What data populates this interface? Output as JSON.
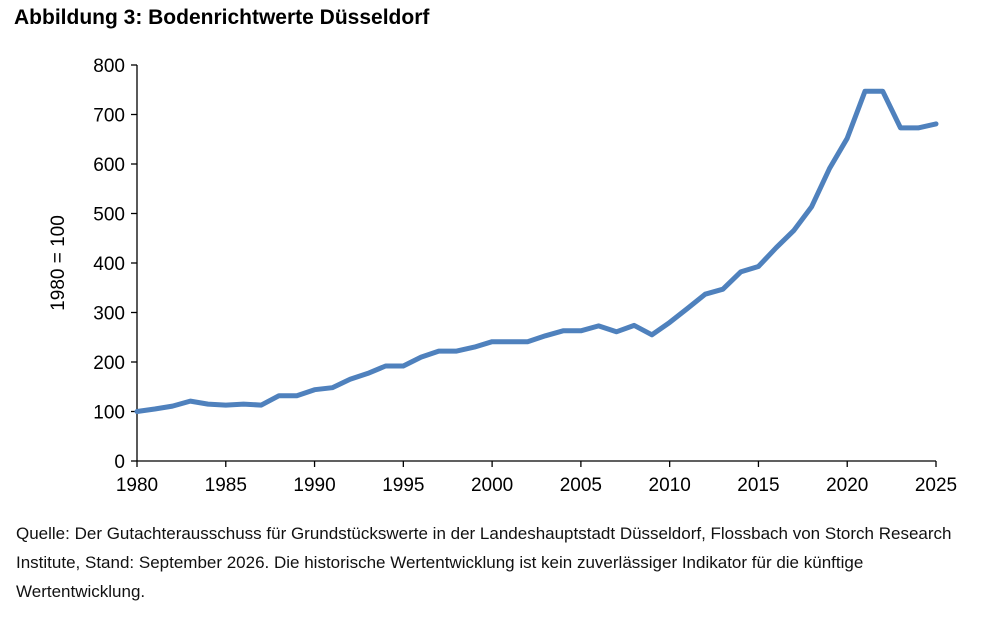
{
  "title": "Abbildung 3: Bodenrichtwerte Düsseldorf",
  "source": "Quelle: Der Gutachterausschuss für Grundstückswerte in der Landeshauptstadt Düsseldorf, Flossbach von Storch Research Institute, Stand: September 2026. Die historische Wertentwicklung ist kein zuverlässiger Indikator für die künftige Wertentwicklung.",
  "chart_data": {
    "type": "line",
    "title": "Abbildung 3: Bodenrichtwerte Düsseldorf",
    "xlabel": "",
    "ylabel": "1980 = 100",
    "xlim": [
      1980,
      2025
    ],
    "ylim": [
      0,
      800
    ],
    "x_ticks": [
      "1980",
      "1985",
      "1990",
      "1995",
      "2000",
      "2005",
      "2010",
      "2015",
      "2020",
      "2025"
    ],
    "y_ticks": [
      "0",
      "100",
      "200",
      "300",
      "400",
      "500",
      "600",
      "700",
      "800"
    ],
    "grid": false,
    "legend": "none",
    "series_color": "#4F81BD",
    "series": [
      {
        "x": [
          1980,
          1981,
          1982,
          1983,
          1984,
          1985,
          1986,
          1987,
          1988,
          1989,
          1990,
          1991,
          1992,
          1993,
          1994,
          1995,
          1996,
          1997,
          1998,
          1999,
          2000,
          2001,
          2002,
          2003,
          2004,
          2005,
          2006,
          2007,
          2008,
          2009,
          2010,
          2011,
          2012,
          2013,
          2014,
          2015,
          2016,
          2017,
          2018,
          2019,
          2020,
          2021,
          2022,
          2023,
          2024,
          2025
        ],
        "values": [
          100,
          105,
          111,
          121,
          115,
          113,
          115,
          113,
          132,
          132,
          144,
          148,
          165,
          177,
          192,
          192,
          210,
          222,
          222,
          230,
          241,
          241,
          241,
          253,
          263,
          263,
          273,
          261,
          274,
          255,
          280,
          308,
          337,
          347,
          382,
          393,
          431,
          466,
          514,
          591,
          652,
          747,
          747,
          673,
          673,
          681
        ]
      }
    ]
  }
}
